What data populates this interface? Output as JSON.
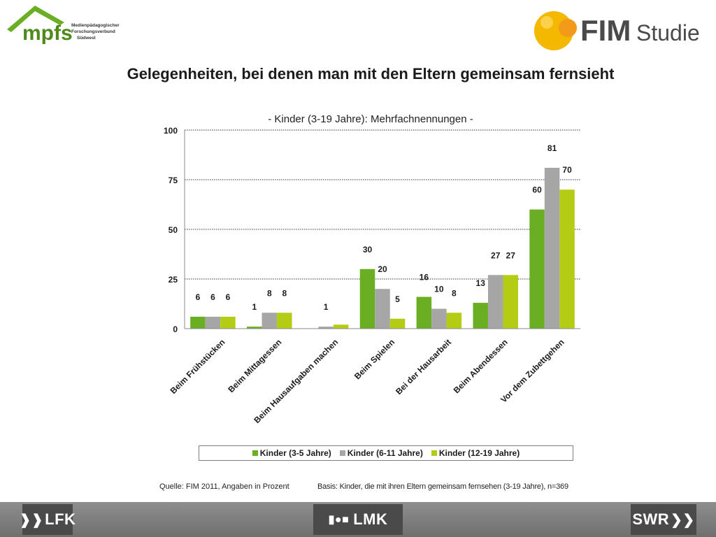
{
  "header": {
    "mpfs_logo_text": "mpfs",
    "mpfs_logo_lines": [
      "Medienpädagogischer",
      "Forschungsverbund",
      "Südwest"
    ],
    "fim_logo_text": "FIM",
    "fim_logo_suffix": "Studie"
  },
  "chart_data": {
    "type": "bar",
    "title": "Gelegenheiten, bei denen man mit den Eltern gemeinsam fernsieht",
    "subtitle": "- Kinder (3-19 Jahre): Mehrfachnennungen -",
    "categories": [
      "Beim Frühstücken",
      "Beim Mittagessen",
      "Beim Hausaufgaben  machen",
      "Beim Spielen",
      "Bei der Hausarbeit",
      "Beim Abendessen",
      "Vor dem Zubettgehen"
    ],
    "series": [
      {
        "name": "Kinder (3-5 Jahre)",
        "color": "#6aaf23",
        "values": [
          6,
          1,
          0,
          30,
          16,
          13,
          60
        ],
        "labels": [
          "6",
          "1",
          "",
          "30",
          "16",
          "13",
          "60"
        ]
      },
      {
        "name": "Kinder (6-11 Jahre)",
        "color": "#a6a6a6",
        "values": [
          6,
          8,
          1,
          20,
          10,
          27,
          81
        ],
        "labels": [
          "6",
          "8",
          "1",
          "20",
          "10",
          "27",
          "81"
        ]
      },
      {
        "name": "Kinder (12-19 Jahre)",
        "color": "#b5cc14",
        "values": [
          6,
          8,
          2,
          5,
          8,
          27,
          70
        ],
        "labels": [
          "6",
          "8",
          "",
          "5",
          "8",
          "27",
          "70"
        ]
      }
    ],
    "ylim": [
      0,
      100
    ],
    "yticks": [
      "0",
      "25",
      "50",
      "75",
      "100"
    ],
    "grid": true,
    "legend_position": "bottom"
  },
  "footer": {
    "source": "Quelle: FIM 2011,  Angaben in Prozent",
    "basis": "Basis: Kinder, die mit ihren Eltern gemeinsam fernsehen (3-19 Jahre), n=369",
    "logos": {
      "lfk": "LFK",
      "lmk": "LMK",
      "swr": "SWR"
    }
  }
}
